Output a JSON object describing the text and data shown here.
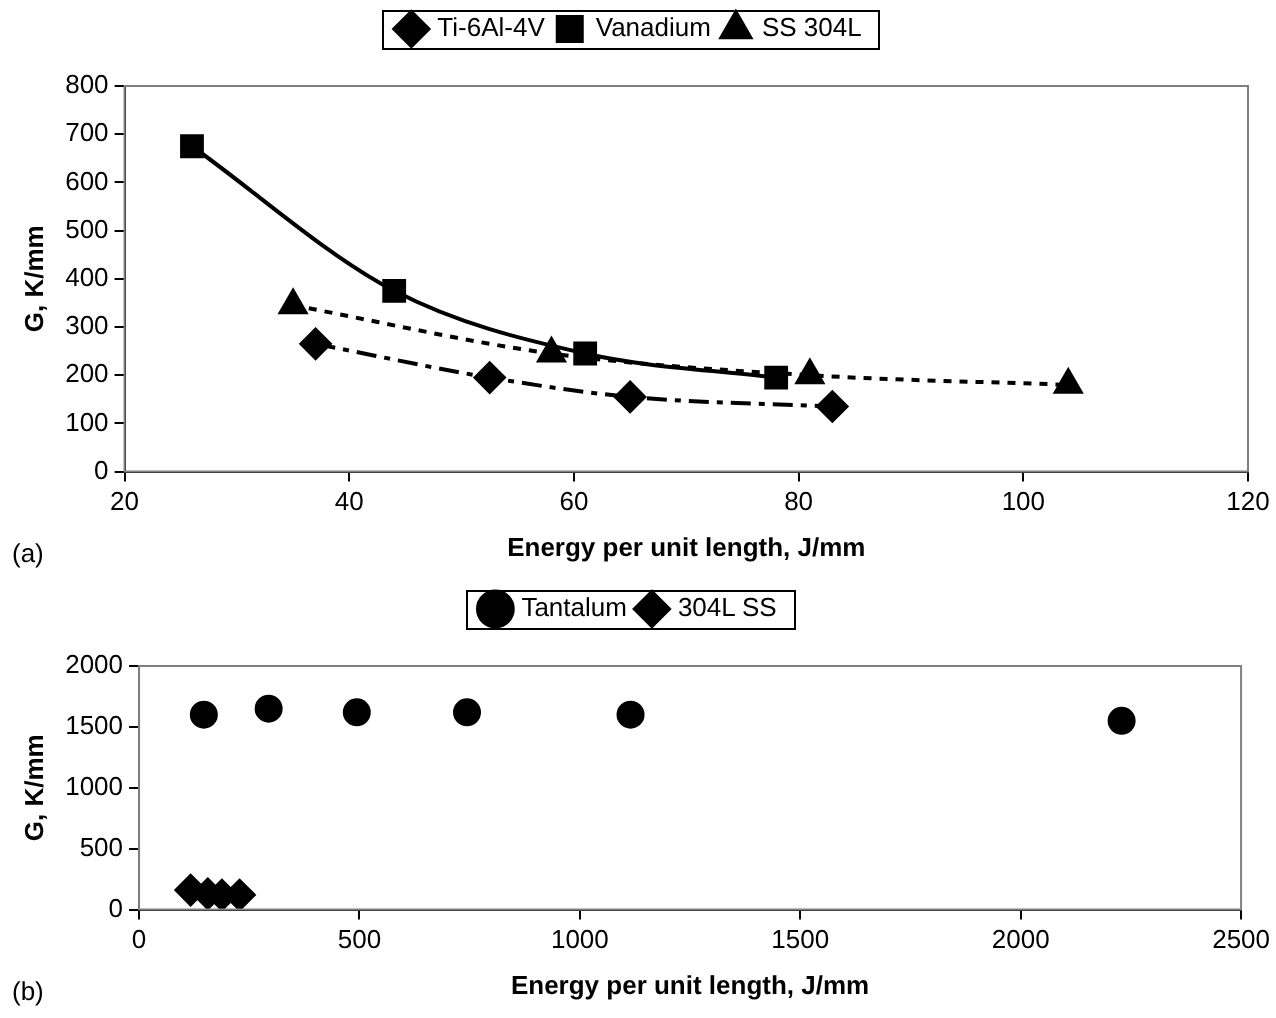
{
  "chart_data": [
    {
      "type": "line",
      "xlabel": "Energy per unit length, J/mm",
      "ylabel": "G, K/mm",
      "annotations": [
        "(a)"
      ],
      "xlim": [
        20,
        120
      ],
      "xticks": [
        20,
        40,
        60,
        80,
        100,
        120
      ],
      "ylim": [
        0,
        800
      ],
      "yticks": [
        0,
        100,
        200,
        300,
        400,
        500,
        600,
        700,
        800
      ],
      "grid": false,
      "legend": "top",
      "series": [
        {
          "name": "Ti-6Al-4V",
          "color": "#000000",
          "marker": "diamond",
          "line_style": "dashed",
          "x": [
            37,
            52.5,
            65,
            83
          ],
          "values": [
            265,
            195,
            155,
            135
          ]
        },
        {
          "name": "Vanadium",
          "color": "#000000",
          "marker": "square",
          "line_style": "solid",
          "x": [
            26,
            44,
            61,
            78
          ],
          "values": [
            675,
            375,
            245,
            195
          ]
        },
        {
          "name": "SS 304L",
          "color": "#000000",
          "marker": "triangle",
          "line_style": "dotted",
          "x": [
            35,
            58,
            81,
            104
          ],
          "values": [
            345,
            245,
            200,
            180
          ]
        }
      ]
    },
    {
      "type": "scatter",
      "xlabel": "Energy per unit length, J/mm",
      "ylabel": "G, K/mm",
      "annotations": [
        "(b)"
      ],
      "xlim": [
        0,
        2500
      ],
      "xticks": [
        0,
        500,
        1000,
        1500,
        2000,
        2500
      ],
      "ylim": [
        0,
        2000
      ],
      "yticks": [
        0,
        500,
        1000,
        1500,
        2000
      ],
      "grid": false,
      "legend": "top",
      "series": [
        {
          "name": "Tantalum",
          "color": "#000000",
          "marker": "circle",
          "x": [
            147,
            294,
            494,
            744,
            1115,
            2229
          ],
          "values": [
            1600,
            1650,
            1620,
            1620,
            1600,
            1550
          ]
        },
        {
          "name": "304L SS",
          "color": "#000000",
          "marker": "diamond",
          "x": [
            117,
            156,
            188,
            228
          ],
          "values": [
            160,
            130,
            120,
            120
          ]
        }
      ]
    }
  ]
}
